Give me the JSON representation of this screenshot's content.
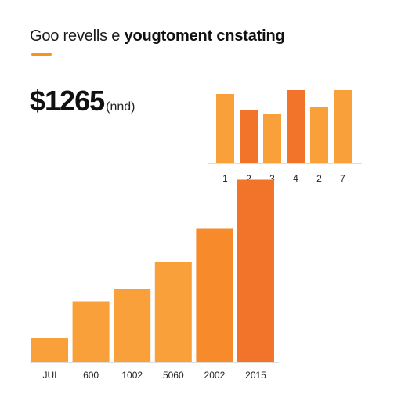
{
  "header": {
    "title_lead": "Goo revells e ",
    "title_bold": "yougtoment cnstating"
  },
  "kpi": {
    "amount": "$1265",
    "unit": "(nnd)"
  },
  "colors": {
    "accent": "#f7941e",
    "light": "#f9a03a",
    "mid": "#f78a2b",
    "dark": "#f2742a",
    "axis": "#dddddd"
  },
  "chart_data": [
    {
      "type": "bar",
      "categories": [
        "1",
        "2",
        "3",
        "4",
        "2",
        "7"
      ],
      "values": [
        88,
        68,
        63,
        93,
        72,
        93
      ],
      "ylim": [
        0,
        100
      ],
      "title": "",
      "xlabel": "",
      "ylabel": "",
      "grid": false,
      "bar_colors": [
        "#f9a03a",
        "#f2742a",
        "#f9a03a",
        "#f2742a",
        "#f9a03a",
        "#f9a03a"
      ]
    },
    {
      "type": "bar",
      "categories": [
        "JUI",
        "600",
        "1002",
        "5060",
        "2002",
        "2015"
      ],
      "values": [
        10,
        25,
        30,
        41,
        55,
        75
      ],
      "ylim": [
        0,
        80
      ],
      "title": "",
      "xlabel": "",
      "ylabel": "",
      "grid": false,
      "bar_colors": [
        "#f9a03a",
        "#f9a03a",
        "#f9a03a",
        "#f9a03a",
        "#f78a2b",
        "#f2742a"
      ]
    }
  ]
}
